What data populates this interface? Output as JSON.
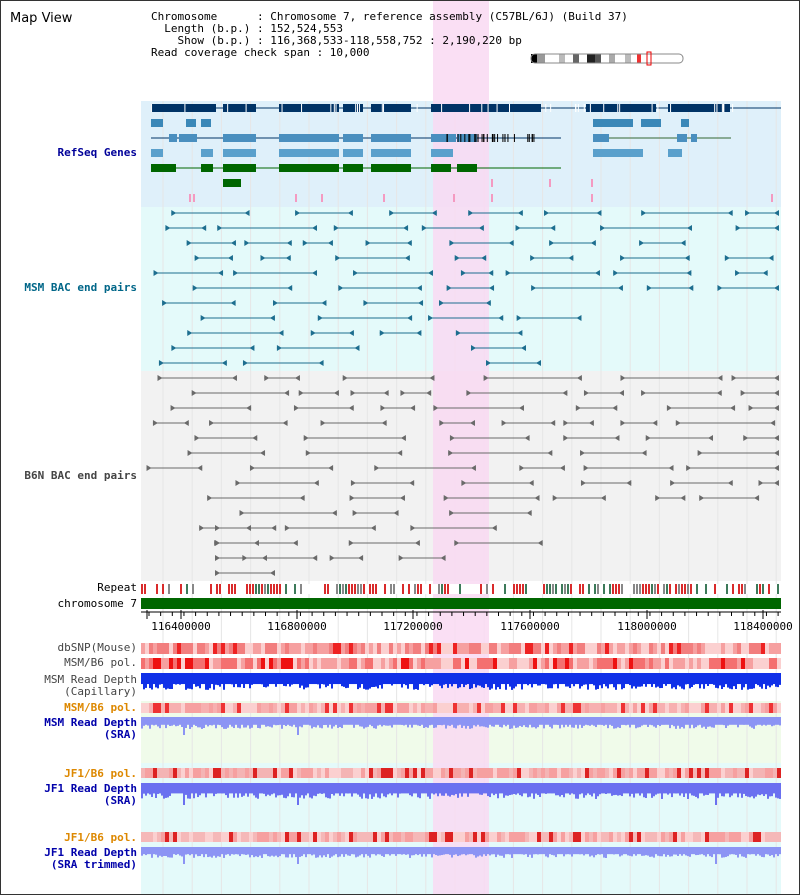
{
  "title": "Map View",
  "header": {
    "chromosome": "Chromosome      : Chromosome 7, reference assembly (C57BL/6J) (Build 37)",
    "length": "  Length (b.p.) : 152,524,553",
    "show": "    Show (b.p.) : 116,368,533-118,558,752 : 2,190,220 bp",
    "coverage": "Read coverage check span : 10,000"
  },
  "tracks": {
    "refseq": "RefSeq Genes",
    "msm_bac": "MSM BAC end pairs",
    "b6n_bac": "B6N BAC end pairs",
    "repeat": "Repeat",
    "chromosome": "chromosome 7",
    "dbsnp": "dbSNP(Mouse)",
    "msm_b6_pol_1": "MSM/B6 pol.",
    "msm_depth_cap_1": "MSM Read Depth",
    "msm_depth_cap_2": "(Capillary)",
    "msm_b6_pol_2": "MSM/B6 pol.",
    "msm_depth_sra_1": "MSM Read Depth",
    "msm_depth_sra_2": "(SRA)",
    "jf1_pol_1": "JF1/B6 pol.",
    "jf1_depth_1": "JF1 Read Depth",
    "jf1_depth_1b": "(SRA)",
    "jf1_pol_2": "JF1/B6 pol.",
    "jf1_depth_2": "JF1 Read Depth",
    "jf1_depth_2b": "(SRA trimmed)"
  },
  "axis": {
    "ticks": [
      "116400000",
      "116800000",
      "117200000",
      "117600000",
      "118000000",
      "118400000"
    ]
  },
  "colors": {
    "refseq_label": "#000099",
    "msm_label": "#006688",
    "b6n_label": "#444444",
    "orange_label": "#dd8800",
    "blue_label": "#0000aa",
    "highlight": "#f9d9f2",
    "chromosome_bar": "#006600"
  }
}
